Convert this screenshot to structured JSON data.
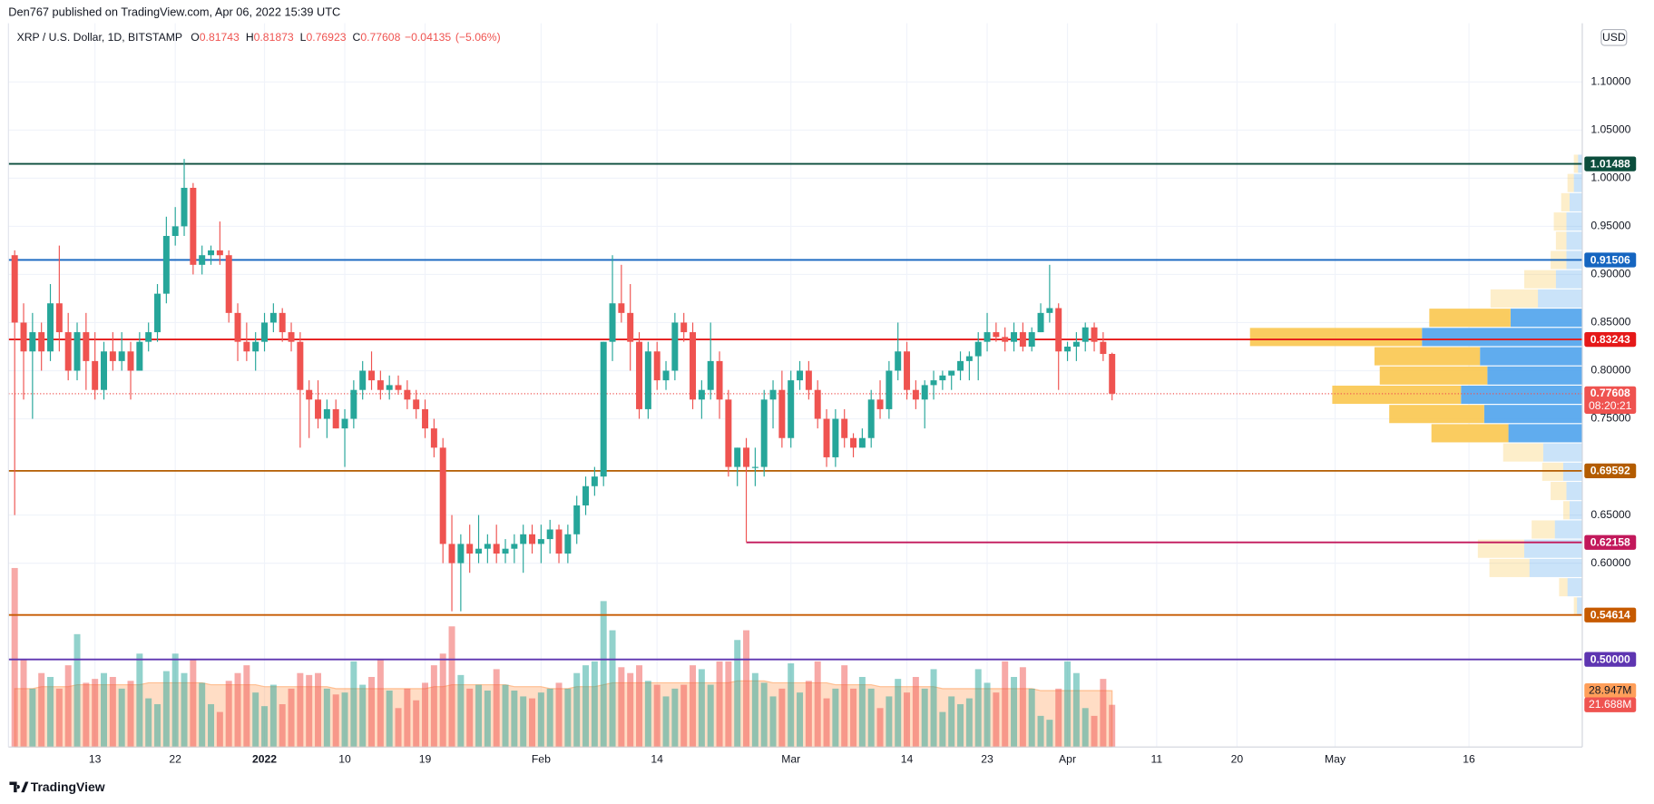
{
  "header": {
    "published": "Den767 published on TradingView.com, Apr 06, 2022 15:39 UTC",
    "brand": "TradingView"
  },
  "chart_data": {
    "type": "candlestick",
    "symbol": "XRP / U.S. Dollar, 1D, BITSTAMP",
    "legend_labels": [
      "O",
      "H",
      "L",
      "C"
    ],
    "ohlc": [
      0.81743,
      0.81873,
      0.76923,
      0.77608
    ],
    "change": {
      "value": -0.04135,
      "label": "−0.04135"
    },
    "change_pct": {
      "value": -5.06,
      "label": "(−5.06%)"
    },
    "currency": "USD",
    "up_color": "#26a69a",
    "down_color": "#ef5350",
    "grid": true,
    "xlim": [
      -0.7,
      175.7
    ],
    "ylim": [
      0.409,
      1.161
    ],
    "xticks": [
      {
        "value": 9,
        "label": "13"
      },
      {
        "value": 18,
        "label": "22"
      },
      {
        "value": 28,
        "label": "2022"
      },
      {
        "value": 37,
        "label": "10"
      },
      {
        "value": 46,
        "label": "19"
      },
      {
        "value": 59,
        "label": "Feb"
      },
      {
        "value": 72,
        "label": "14"
      },
      {
        "value": 87,
        "label": "Mar"
      },
      {
        "value": 100,
        "label": "14"
      },
      {
        "value": 109,
        "label": "23"
      },
      {
        "value": 118,
        "label": "Apr"
      },
      {
        "value": 128,
        "label": "11"
      },
      {
        "value": 137,
        "label": "20"
      },
      {
        "value": 148,
        "label": "May"
      },
      {
        "value": 163,
        "label": "16"
      }
    ],
    "yticks": [
      {
        "value": 1.1,
        "label": "1.10000"
      },
      {
        "value": 1.05,
        "label": "1.05000"
      },
      {
        "value": 1.0,
        "label": "1.00000"
      },
      {
        "value": 0.95,
        "label": "0.95000"
      },
      {
        "value": 0.9,
        "label": "0.90000"
      },
      {
        "value": 0.85,
        "label": "0.85000"
      },
      {
        "value": 0.8,
        "label": "0.80000"
      },
      {
        "value": 0.75,
        "label": "0.75000"
      },
      {
        "value": 0.65,
        "label": "0.65000"
      },
      {
        "value": 0.6,
        "label": "0.60000"
      }
    ],
    "candles": [
      [
        0.92,
        0.925,
        0.65,
        0.85
      ],
      [
        0.85,
        0.87,
        0.77,
        0.82
      ],
      [
        0.82,
        0.86,
        0.75,
        0.84
      ],
      [
        0.84,
        0.85,
        0.8,
        0.82
      ],
      [
        0.82,
        0.89,
        0.81,
        0.87
      ],
      [
        0.87,
        0.93,
        0.82,
        0.84
      ],
      [
        0.84,
        0.86,
        0.79,
        0.8
      ],
      [
        0.8,
        0.85,
        0.79,
        0.84
      ],
      [
        0.84,
        0.86,
        0.78,
        0.81
      ],
      [
        0.81,
        0.84,
        0.77,
        0.78
      ],
      [
        0.78,
        0.83,
        0.77,
        0.82
      ],
      [
        0.82,
        0.84,
        0.8,
        0.81
      ],
      [
        0.81,
        0.84,
        0.8,
        0.82
      ],
      [
        0.82,
        0.83,
        0.77,
        0.8
      ],
      [
        0.8,
        0.84,
        0.8,
        0.83
      ],
      [
        0.83,
        0.85,
        0.82,
        0.84
      ],
      [
        0.84,
        0.89,
        0.83,
        0.88
      ],
      [
        0.88,
        0.96,
        0.87,
        0.94
      ],
      [
        0.94,
        0.97,
        0.93,
        0.95
      ],
      [
        0.95,
        1.02,
        0.94,
        0.99
      ],
      [
        0.99,
        0.995,
        0.9,
        0.91
      ],
      [
        0.91,
        0.93,
        0.9,
        0.92
      ],
      [
        0.92,
        0.93,
        0.91,
        0.925
      ],
      [
        0.925,
        0.955,
        0.91,
        0.92
      ],
      [
        0.92,
        0.925,
        0.85,
        0.86
      ],
      [
        0.86,
        0.87,
        0.81,
        0.83
      ],
      [
        0.83,
        0.85,
        0.81,
        0.82
      ],
      [
        0.82,
        0.84,
        0.8,
        0.83
      ],
      [
        0.83,
        0.86,
        0.82,
        0.85
      ],
      [
        0.85,
        0.87,
        0.84,
        0.86
      ],
      [
        0.86,
        0.865,
        0.83,
        0.84
      ],
      [
        0.84,
        0.85,
        0.82,
        0.83
      ],
      [
        0.83,
        0.84,
        0.72,
        0.78
      ],
      [
        0.78,
        0.79,
        0.73,
        0.77
      ],
      [
        0.77,
        0.79,
        0.74,
        0.75
      ],
      [
        0.75,
        0.77,
        0.73,
        0.76
      ],
      [
        0.76,
        0.77,
        0.74,
        0.74
      ],
      [
        0.74,
        0.76,
        0.7,
        0.75
      ],
      [
        0.75,
        0.79,
        0.74,
        0.78
      ],
      [
        0.78,
        0.81,
        0.77,
        0.8
      ],
      [
        0.8,
        0.82,
        0.78,
        0.79
      ],
      [
        0.79,
        0.8,
        0.77,
        0.78
      ],
      [
        0.78,
        0.795,
        0.77,
        0.785
      ],
      [
        0.785,
        0.795,
        0.775,
        0.78
      ],
      [
        0.78,
        0.79,
        0.76,
        0.77
      ],
      [
        0.77,
        0.78,
        0.75,
        0.76
      ],
      [
        0.76,
        0.77,
        0.73,
        0.74
      ],
      [
        0.74,
        0.75,
        0.71,
        0.72
      ],
      [
        0.72,
        0.73,
        0.6,
        0.62
      ],
      [
        0.62,
        0.65,
        0.55,
        0.6
      ],
      [
        0.6,
        0.63,
        0.55,
        0.62
      ],
      [
        0.62,
        0.64,
        0.59,
        0.61
      ],
      [
        0.61,
        0.65,
        0.6,
        0.615
      ],
      [
        0.615,
        0.63,
        0.6,
        0.62
      ],
      [
        0.62,
        0.64,
        0.6,
        0.61
      ],
      [
        0.61,
        0.625,
        0.6,
        0.615
      ],
      [
        0.615,
        0.63,
        0.6,
        0.62
      ],
      [
        0.62,
        0.64,
        0.59,
        0.63
      ],
      [
        0.63,
        0.64,
        0.61,
        0.62
      ],
      [
        0.62,
        0.64,
        0.6,
        0.625
      ],
      [
        0.625,
        0.645,
        0.61,
        0.635
      ],
      [
        0.635,
        0.64,
        0.6,
        0.61
      ],
      [
        0.61,
        0.64,
        0.6,
        0.63
      ],
      [
        0.63,
        0.67,
        0.62,
        0.66
      ],
      [
        0.66,
        0.69,
        0.65,
        0.68
      ],
      [
        0.68,
        0.7,
        0.67,
        0.69
      ],
      [
        0.69,
        0.83,
        0.68,
        0.83
      ],
      [
        0.83,
        0.92,
        0.81,
        0.87
      ],
      [
        0.87,
        0.91,
        0.85,
        0.86
      ],
      [
        0.86,
        0.89,
        0.8,
        0.83
      ],
      [
        0.83,
        0.84,
        0.75,
        0.76
      ],
      [
        0.76,
        0.83,
        0.75,
        0.82
      ],
      [
        0.82,
        0.83,
        0.78,
        0.79
      ],
      [
        0.79,
        0.81,
        0.78,
        0.8
      ],
      [
        0.8,
        0.86,
        0.79,
        0.85
      ],
      [
        0.85,
        0.86,
        0.83,
        0.84
      ],
      [
        0.84,
        0.85,
        0.76,
        0.77
      ],
      [
        0.77,
        0.79,
        0.75,
        0.78
      ],
      [
        0.78,
        0.85,
        0.77,
        0.81
      ],
      [
        0.81,
        0.82,
        0.75,
        0.77
      ],
      [
        0.77,
        0.78,
        0.69,
        0.7
      ],
      [
        0.7,
        0.72,
        0.68,
        0.72
      ],
      [
        0.72,
        0.73,
        0.622,
        0.7
      ],
      [
        0.7,
        0.72,
        0.68,
        0.7
      ],
      [
        0.7,
        0.78,
        0.69,
        0.77
      ],
      [
        0.77,
        0.79,
        0.74,
        0.78
      ],
      [
        0.78,
        0.8,
        0.72,
        0.73
      ],
      [
        0.73,
        0.8,
        0.72,
        0.79
      ],
      [
        0.79,
        0.81,
        0.78,
        0.8
      ],
      [
        0.8,
        0.81,
        0.77,
        0.78
      ],
      [
        0.78,
        0.79,
        0.74,
        0.75
      ],
      [
        0.75,
        0.76,
        0.7,
        0.71
      ],
      [
        0.71,
        0.76,
        0.7,
        0.75
      ],
      [
        0.75,
        0.76,
        0.72,
        0.73
      ],
      [
        0.73,
        0.735,
        0.71,
        0.72
      ],
      [
        0.72,
        0.74,
        0.72,
        0.73
      ],
      [
        0.73,
        0.78,
        0.72,
        0.77
      ],
      [
        0.77,
        0.79,
        0.75,
        0.76
      ],
      [
        0.76,
        0.81,
        0.75,
        0.8
      ],
      [
        0.8,
        0.85,
        0.79,
        0.82
      ],
      [
        0.82,
        0.83,
        0.77,
        0.78
      ],
      [
        0.78,
        0.79,
        0.76,
        0.77
      ],
      [
        0.77,
        0.79,
        0.74,
        0.785
      ],
      [
        0.785,
        0.8,
        0.77,
        0.79
      ],
      [
        0.79,
        0.8,
        0.78,
        0.795
      ],
      [
        0.795,
        0.8,
        0.78,
        0.8
      ],
      [
        0.8,
        0.82,
        0.79,
        0.81
      ],
      [
        0.81,
        0.82,
        0.79,
        0.815
      ],
      [
        0.815,
        0.84,
        0.79,
        0.83
      ],
      [
        0.83,
        0.86,
        0.82,
        0.84
      ],
      [
        0.84,
        0.85,
        0.83,
        0.835
      ],
      [
        0.835,
        0.845,
        0.82,
        0.83
      ],
      [
        0.83,
        0.85,
        0.82,
        0.84
      ],
      [
        0.84,
        0.85,
        0.82,
        0.825
      ],
      [
        0.825,
        0.845,
        0.82,
        0.84
      ],
      [
        0.84,
        0.87,
        0.84,
        0.86
      ],
      [
        0.86,
        0.91,
        0.85,
        0.865
      ],
      [
        0.865,
        0.87,
        0.78,
        0.82
      ],
      [
        0.82,
        0.83,
        0.81,
        0.825
      ],
      [
        0.825,
        0.84,
        0.81,
        0.83
      ],
      [
        0.83,
        0.85,
        0.82,
        0.845
      ],
      [
        0.845,
        0.85,
        0.82,
        0.83
      ],
      [
        0.83,
        0.84,
        0.81,
        0.8174
      ],
      [
        0.81743,
        0.81873,
        0.76923,
        0.77608
      ]
    ],
    "volume": [
      92,
      45,
      30,
      38,
      36,
      30,
      42,
      58,
      33,
      35,
      38,
      36,
      30,
      34,
      48,
      25,
      22,
      39,
      48,
      38,
      45,
      33,
      22,
      18,
      34,
      38,
      42,
      28,
      21,
      32,
      22,
      30,
      38,
      37,
      38,
      30,
      27,
      28,
      44,
      32,
      36,
      45,
      29,
      20,
      30,
      24,
      33,
      42,
      48,
      62,
      37,
      30,
      32,
      29,
      40,
      32,
      29,
      26,
      25,
      28,
      30,
      33,
      30,
      38,
      42,
      44,
      75,
      60,
      41,
      38,
      42,
      34,
      32,
      26,
      30,
      32,
      42,
      40,
      32,
      44,
      44,
      55,
      60,
      38,
      33,
      26,
      30,
      43,
      28,
      34,
      44,
      25,
      30,
      42,
      30,
      36,
      30,
      20,
      26,
      35,
      28,
      36,
      30,
      40,
      18,
      26,
      22,
      25,
      40,
      33,
      28,
      44,
      36,
      41,
      30,
      16,
      14,
      30,
      44,
      38,
      20,
      16,
      35,
      21.688
    ],
    "volume_ma": [
      30,
      30,
      30,
      31,
      31,
      31,
      31,
      32,
      32,
      32,
      32,
      32,
      32,
      32,
      32,
      33,
      33,
      33,
      33,
      33,
      33,
      33,
      32,
      32,
      32,
      32,
      32,
      32,
      31,
      31,
      31,
      31,
      31,
      31,
      31,
      31,
      30,
      30,
      30,
      30,
      30,
      30,
      30,
      30,
      30,
      30,
      30,
      31,
      31,
      32,
      32,
      32,
      32,
      32,
      32,
      32,
      31,
      31,
      31,
      31,
      30,
      30,
      30,
      31,
      31,
      31,
      32,
      33,
      33,
      33,
      33,
      33,
      33,
      33,
      33,
      33,
      33,
      33,
      33,
      33,
      33,
      34,
      34,
      34,
      34,
      33,
      33,
      33,
      33,
      33,
      33,
      33,
      32,
      32,
      32,
      32,
      32,
      31,
      31,
      31,
      31,
      31,
      31,
      31,
      30,
      30,
      30,
      30,
      30,
      30,
      30,
      30,
      30,
      30,
      30,
      29,
      29,
      29,
      29,
      29,
      29,
      29,
      29,
      28.947
    ],
    "volume_labels": {
      "ma": "28.947M",
      "last": "21.688M"
    },
    "volume_ma_color": "#ff9f5a",
    "levels": [
      {
        "price": 1.01488,
        "color": "#0b4d3c"
      },
      {
        "price": 0.91506,
        "color": "#1565c0"
      },
      {
        "price": 0.83243,
        "color": "#e51919"
      },
      {
        "price": 0.69592,
        "color": "#b35c00"
      },
      {
        "price": 0.62158,
        "color": "#c2185b",
        "from": 82
      },
      {
        "price": 0.54614,
        "color": "#c65a00"
      },
      {
        "price": 0.5,
        "label": "0.50000",
        "color": "#5e35b1"
      }
    ],
    "last": {
      "price": 0.77608,
      "countdown": "08:20:21",
      "color": "#ef5350"
    },
    "volume_profile": {
      "bins": [
        0.545,
        0.565,
        0.585,
        0.605,
        0.625,
        0.645,
        0.665,
        0.685,
        0.705,
        0.725,
        0.745,
        0.765,
        0.785,
        0.805,
        0.825,
        0.845,
        0.865,
        0.885,
        0.905,
        0.925,
        0.945,
        0.965,
        0.985,
        1.005,
        1.025
      ],
      "up": [
        3,
        8,
        38,
        44,
        22,
        6,
        15,
        20,
        38,
        73,
        90,
        122,
        102,
        100,
        163,
        77,
        45,
        30,
        15,
        10,
        12,
        8,
        6,
        4
      ],
      "down": [
        5,
        14,
        50,
        55,
        26,
        12,
        15,
        18,
        37,
        70,
        93,
        115,
        90,
        97,
        152,
        68,
        42,
        25,
        15,
        15,
        15,
        12,
        8,
        4
      ],
      "up_color": "#f9c74f",
      "down_color": "#4fa3ec",
      "value_area": [
        0.725,
        0.865
      ]
    }
  }
}
